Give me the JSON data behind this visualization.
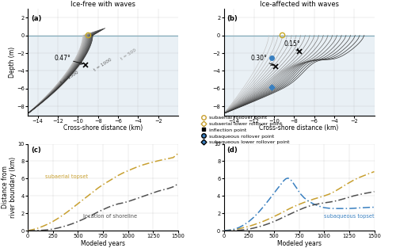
{
  "panel_a_title": "Ice-free with waves",
  "panel_b_title": "Ice-affected with waves",
  "panel_a_label": "(a)",
  "panel_b_label": "(b)",
  "panel_c_label": "(c)",
  "panel_d_label": "(d)",
  "xlabel_top": "Cross-shore distance (km)",
  "ylabel_top": "Depth (m)",
  "xlabel_bot": "Modeled years",
  "ylabel_bot": "Distance from\nriver boundary (km)",
  "angle_a": "0.47°",
  "angle_b1": "0.15°",
  "angle_b2": "0.30°",
  "bg_color": "#ffffff",
  "water_blue": "#a8c4d8",
  "sea_line_color": "#7aaabb",
  "subaerial_color": "#c8a030",
  "shoreline_color": "#505050",
  "subaqueous_color": "#3a80c0",
  "legend_marker_gold_open": "#c8a030",
  "legend_marker_blue_fill": "#3a80c0",
  "legend_marker_black": "#000000",
  "panel_c_subaerial_x": [
    0,
    50,
    100,
    150,
    200,
    250,
    300,
    350,
    400,
    450,
    500,
    550,
    600,
    650,
    700,
    750,
    800,
    850,
    900,
    950,
    1000,
    1050,
    1100,
    1150,
    1200,
    1250,
    1300,
    1350,
    1400,
    1450,
    1500
  ],
  "panel_c_subaerial_y": [
    0.0,
    0.12,
    0.28,
    0.5,
    0.75,
    1.05,
    1.4,
    1.78,
    2.2,
    2.65,
    3.1,
    3.55,
    4.0,
    4.45,
    4.9,
    5.3,
    5.65,
    6.0,
    6.35,
    6.65,
    6.9,
    7.15,
    7.38,
    7.58,
    7.75,
    7.9,
    8.05,
    8.18,
    8.3,
    8.42,
    8.9
  ],
  "panel_c_shoreline_x": [
    0,
    50,
    100,
    150,
    200,
    250,
    300,
    350,
    400,
    450,
    500,
    550,
    600,
    650,
    700,
    750,
    800,
    850,
    900,
    950,
    1000,
    1050,
    1100,
    1150,
    1200,
    1250,
    1300,
    1350,
    1400,
    1450,
    1500
  ],
  "panel_c_shoreline_y": [
    0.0,
    0.0,
    0.02,
    0.05,
    0.1,
    0.18,
    0.3,
    0.45,
    0.62,
    0.82,
    1.05,
    1.3,
    1.58,
    1.85,
    2.15,
    2.42,
    2.68,
    2.9,
    3.08,
    3.2,
    3.35,
    3.55,
    3.75,
    3.95,
    4.15,
    4.35,
    4.55,
    4.7,
    4.85,
    5.05,
    5.4
  ],
  "panel_d_subaerial_x": [
    0,
    50,
    100,
    150,
    200,
    250,
    300,
    350,
    400,
    450,
    500,
    550,
    600,
    650,
    700,
    750,
    800,
    850,
    900,
    950,
    1000,
    1050,
    1100,
    1150,
    1200,
    1250,
    1300,
    1350,
    1400,
    1450,
    1500
  ],
  "panel_d_subaerial_y": [
    0.0,
    0.05,
    0.12,
    0.22,
    0.35,
    0.5,
    0.68,
    0.88,
    1.1,
    1.35,
    1.62,
    1.9,
    2.2,
    2.5,
    2.78,
    3.02,
    3.25,
    3.45,
    3.65,
    3.82,
    4.0,
    4.2,
    4.48,
    4.82,
    5.18,
    5.52,
    5.85,
    6.12,
    6.35,
    6.58,
    6.8
  ],
  "panel_d_subaqueous_x": [
    0,
    50,
    100,
    150,
    200,
    250,
    300,
    350,
    400,
    450,
    500,
    550,
    600,
    620,
    640,
    660,
    680,
    700,
    730,
    760,
    800,
    850,
    900,
    950,
    1000,
    1050,
    1100,
    1150,
    1200,
    1250,
    1300,
    1350,
    1400,
    1450,
    1500
  ],
  "panel_d_subaqueous_y": [
    0.0,
    0.05,
    0.15,
    0.35,
    0.65,
    1.05,
    1.55,
    2.15,
    2.82,
    3.55,
    4.3,
    5.05,
    5.78,
    5.98,
    6.05,
    5.95,
    5.7,
    5.35,
    4.85,
    4.3,
    3.8,
    3.35,
    3.05,
    2.82,
    2.65,
    2.58,
    2.55,
    2.55,
    2.55,
    2.55,
    2.58,
    2.62,
    2.65,
    2.68,
    2.7
  ],
  "panel_d_shoreline_x": [
    0,
    50,
    100,
    150,
    200,
    250,
    300,
    350,
    400,
    450,
    500,
    550,
    600,
    650,
    700,
    750,
    800,
    850,
    900,
    950,
    1000,
    1050,
    1100,
    1150,
    1200,
    1250,
    1300,
    1350,
    1400,
    1450,
    1500
  ],
  "panel_d_shoreline_y": [
    0.0,
    0.0,
    0.02,
    0.05,
    0.1,
    0.18,
    0.3,
    0.45,
    0.62,
    0.82,
    1.05,
    1.3,
    1.58,
    1.85,
    2.12,
    2.38,
    2.62,
    2.82,
    2.98,
    3.1,
    3.2,
    3.28,
    3.38,
    3.52,
    3.68,
    3.85,
    4.02,
    4.15,
    4.28,
    4.38,
    4.5
  ]
}
